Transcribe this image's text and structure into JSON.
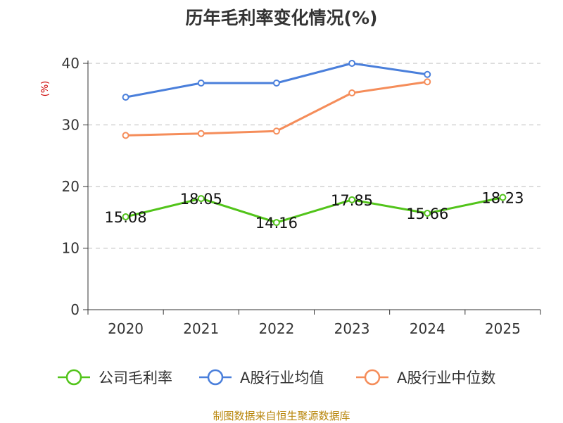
{
  "chart_data": {
    "type": "line",
    "title": "历年毛利率变化情况(%)",
    "ylabel": "(%)",
    "xlabel": "",
    "categories": [
      "2020",
      "2021",
      "2022",
      "2023",
      "2024",
      "2025"
    ],
    "ylim": [
      0,
      40
    ],
    "yticks": [
      0,
      10,
      20,
      30,
      40
    ],
    "grid": true,
    "legend_position": "bottom",
    "series": [
      {
        "name": "公司毛利率",
        "color": "#52c41a",
        "values": [
          15.08,
          18.05,
          14.16,
          17.85,
          15.66,
          18.23
        ],
        "labels": [
          "15.08",
          "18.05",
          "14.16",
          "17.85",
          "15.66",
          "18.23"
        ]
      },
      {
        "name": "A股行业均值",
        "color": "#4a7fdb",
        "values": [
          34.5,
          36.8,
          36.8,
          40.0,
          38.2,
          null
        ]
      },
      {
        "name": "A股行业中位数",
        "color": "#f58d5a",
        "values": [
          28.3,
          28.6,
          29.0,
          35.2,
          37.0,
          null
        ]
      }
    ]
  },
  "colors": {
    "unit_label": "#cc0000",
    "source_note": "#b8860b"
  },
  "source_note": "制图数据来自恒生聚源数据库"
}
